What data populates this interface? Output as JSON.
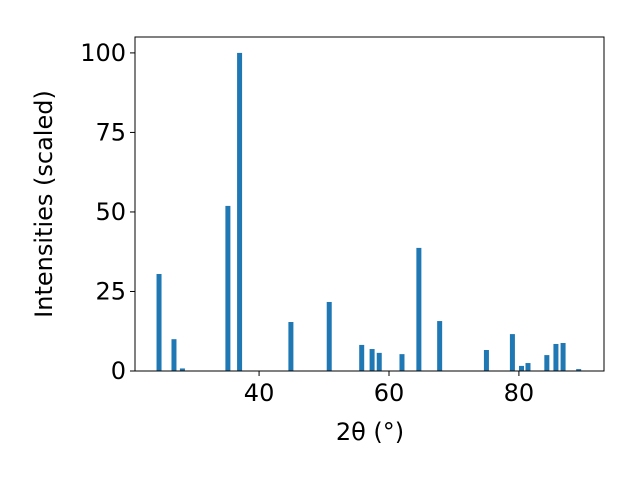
{
  "chart_data": {
    "type": "bar",
    "xlabel": "2θ (°)",
    "ylabel": "Intensities (scaled)",
    "x": [
      24.6,
      26.9,
      28.2,
      35.2,
      37.0,
      44.9,
      50.8,
      55.8,
      57.4,
      58.5,
      62.0,
      64.6,
      67.8,
      75.0,
      79.0,
      80.4,
      81.4,
      84.3,
      85.7,
      86.8,
      89.2
    ],
    "values": [
      30.5,
      10,
      0.8,
      51.9,
      100,
      15.4,
      21.7,
      8.2,
      6.9,
      5.7,
      5.3,
      38.7,
      15.7,
      6.6,
      11.6,
      1.6,
      2.5,
      5.0,
      8.5,
      8.8,
      0.6
    ],
    "color": "#1f77b4",
    "bar_width": 0.77,
    "xlim": [
      20.9,
      93.1
    ],
    "xticks": [
      40,
      60,
      80
    ],
    "ylim": [
      0,
      105
    ],
    "yticks": [
      0,
      25,
      50,
      75,
      100
    ],
    "grid": false
  }
}
